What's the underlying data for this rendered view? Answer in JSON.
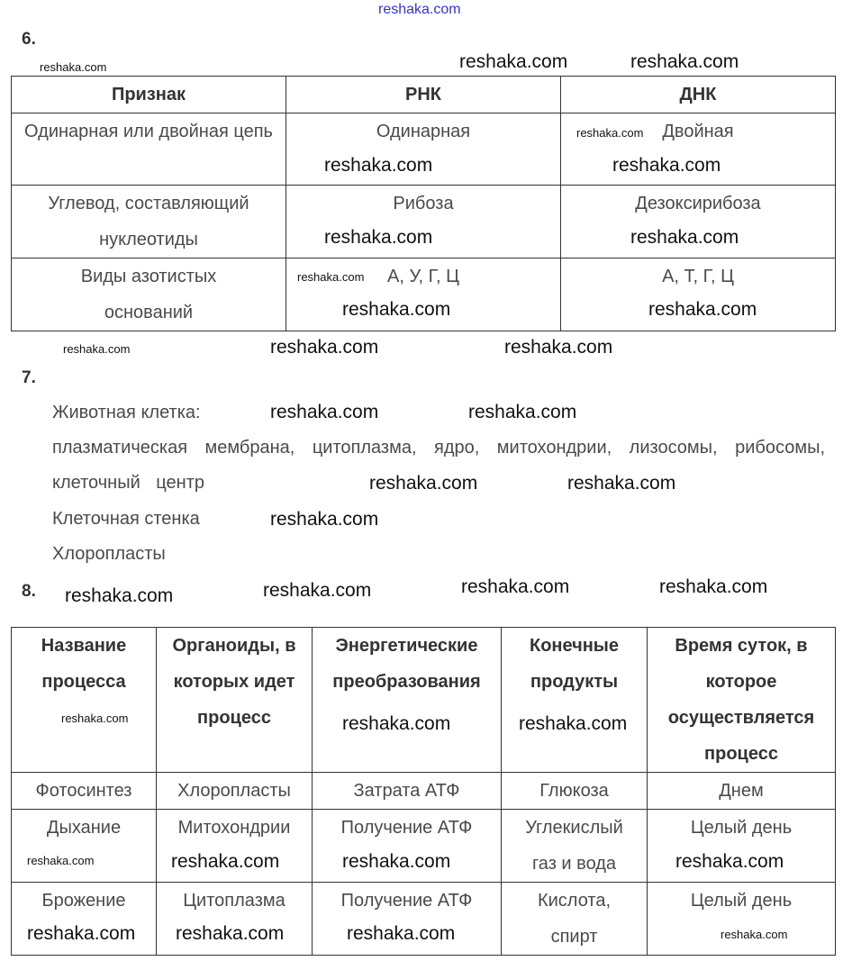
{
  "watermark": "reshaka.com",
  "task6": {
    "number": "6.",
    "headers": [
      "Признак",
      "РНК",
      "ДНК"
    ],
    "rows": [
      [
        "Одинарная или двойная цепь",
        "Одинарная",
        "Двойная"
      ],
      [
        "Углевод, составляющий нуклеотиды",
        "Рибоза",
        "Дезоксирибоза"
      ],
      [
        "Виды азотистых оснований",
        "А, У, Г, Ц",
        "А, Т, Г, Ц"
      ]
    ]
  },
  "task7": {
    "number": "7.",
    "lines": [
      "Животная клетка:",
      "плазматическая мембрана, цитоплазма, ядро, митохондрии, лизосомы, рибосомы, клеточный центр",
      "Клеточная стенка",
      "Хлоропласты"
    ]
  },
  "task8": {
    "number": "8.",
    "headers": [
      "Название процесса",
      "Органоиды, в которых идет процесс",
      "Энергетические преобразования",
      "Конечные продукты",
      "Время суток, в которое осуществляется процесс"
    ],
    "rows": [
      [
        "Фотосинтез",
        "Хлоропласты",
        "Затрата АТФ",
        "Глюкоза",
        "Днем"
      ],
      [
        "Дыхание",
        "Митохондрии",
        "Получение АТФ",
        "Углекислый газ и вода",
        "Целый день"
      ],
      [
        "Брожение",
        "Цитоплазма",
        "Получение АТФ",
        "Кислота, спирт",
        "Целый день"
      ]
    ]
  }
}
